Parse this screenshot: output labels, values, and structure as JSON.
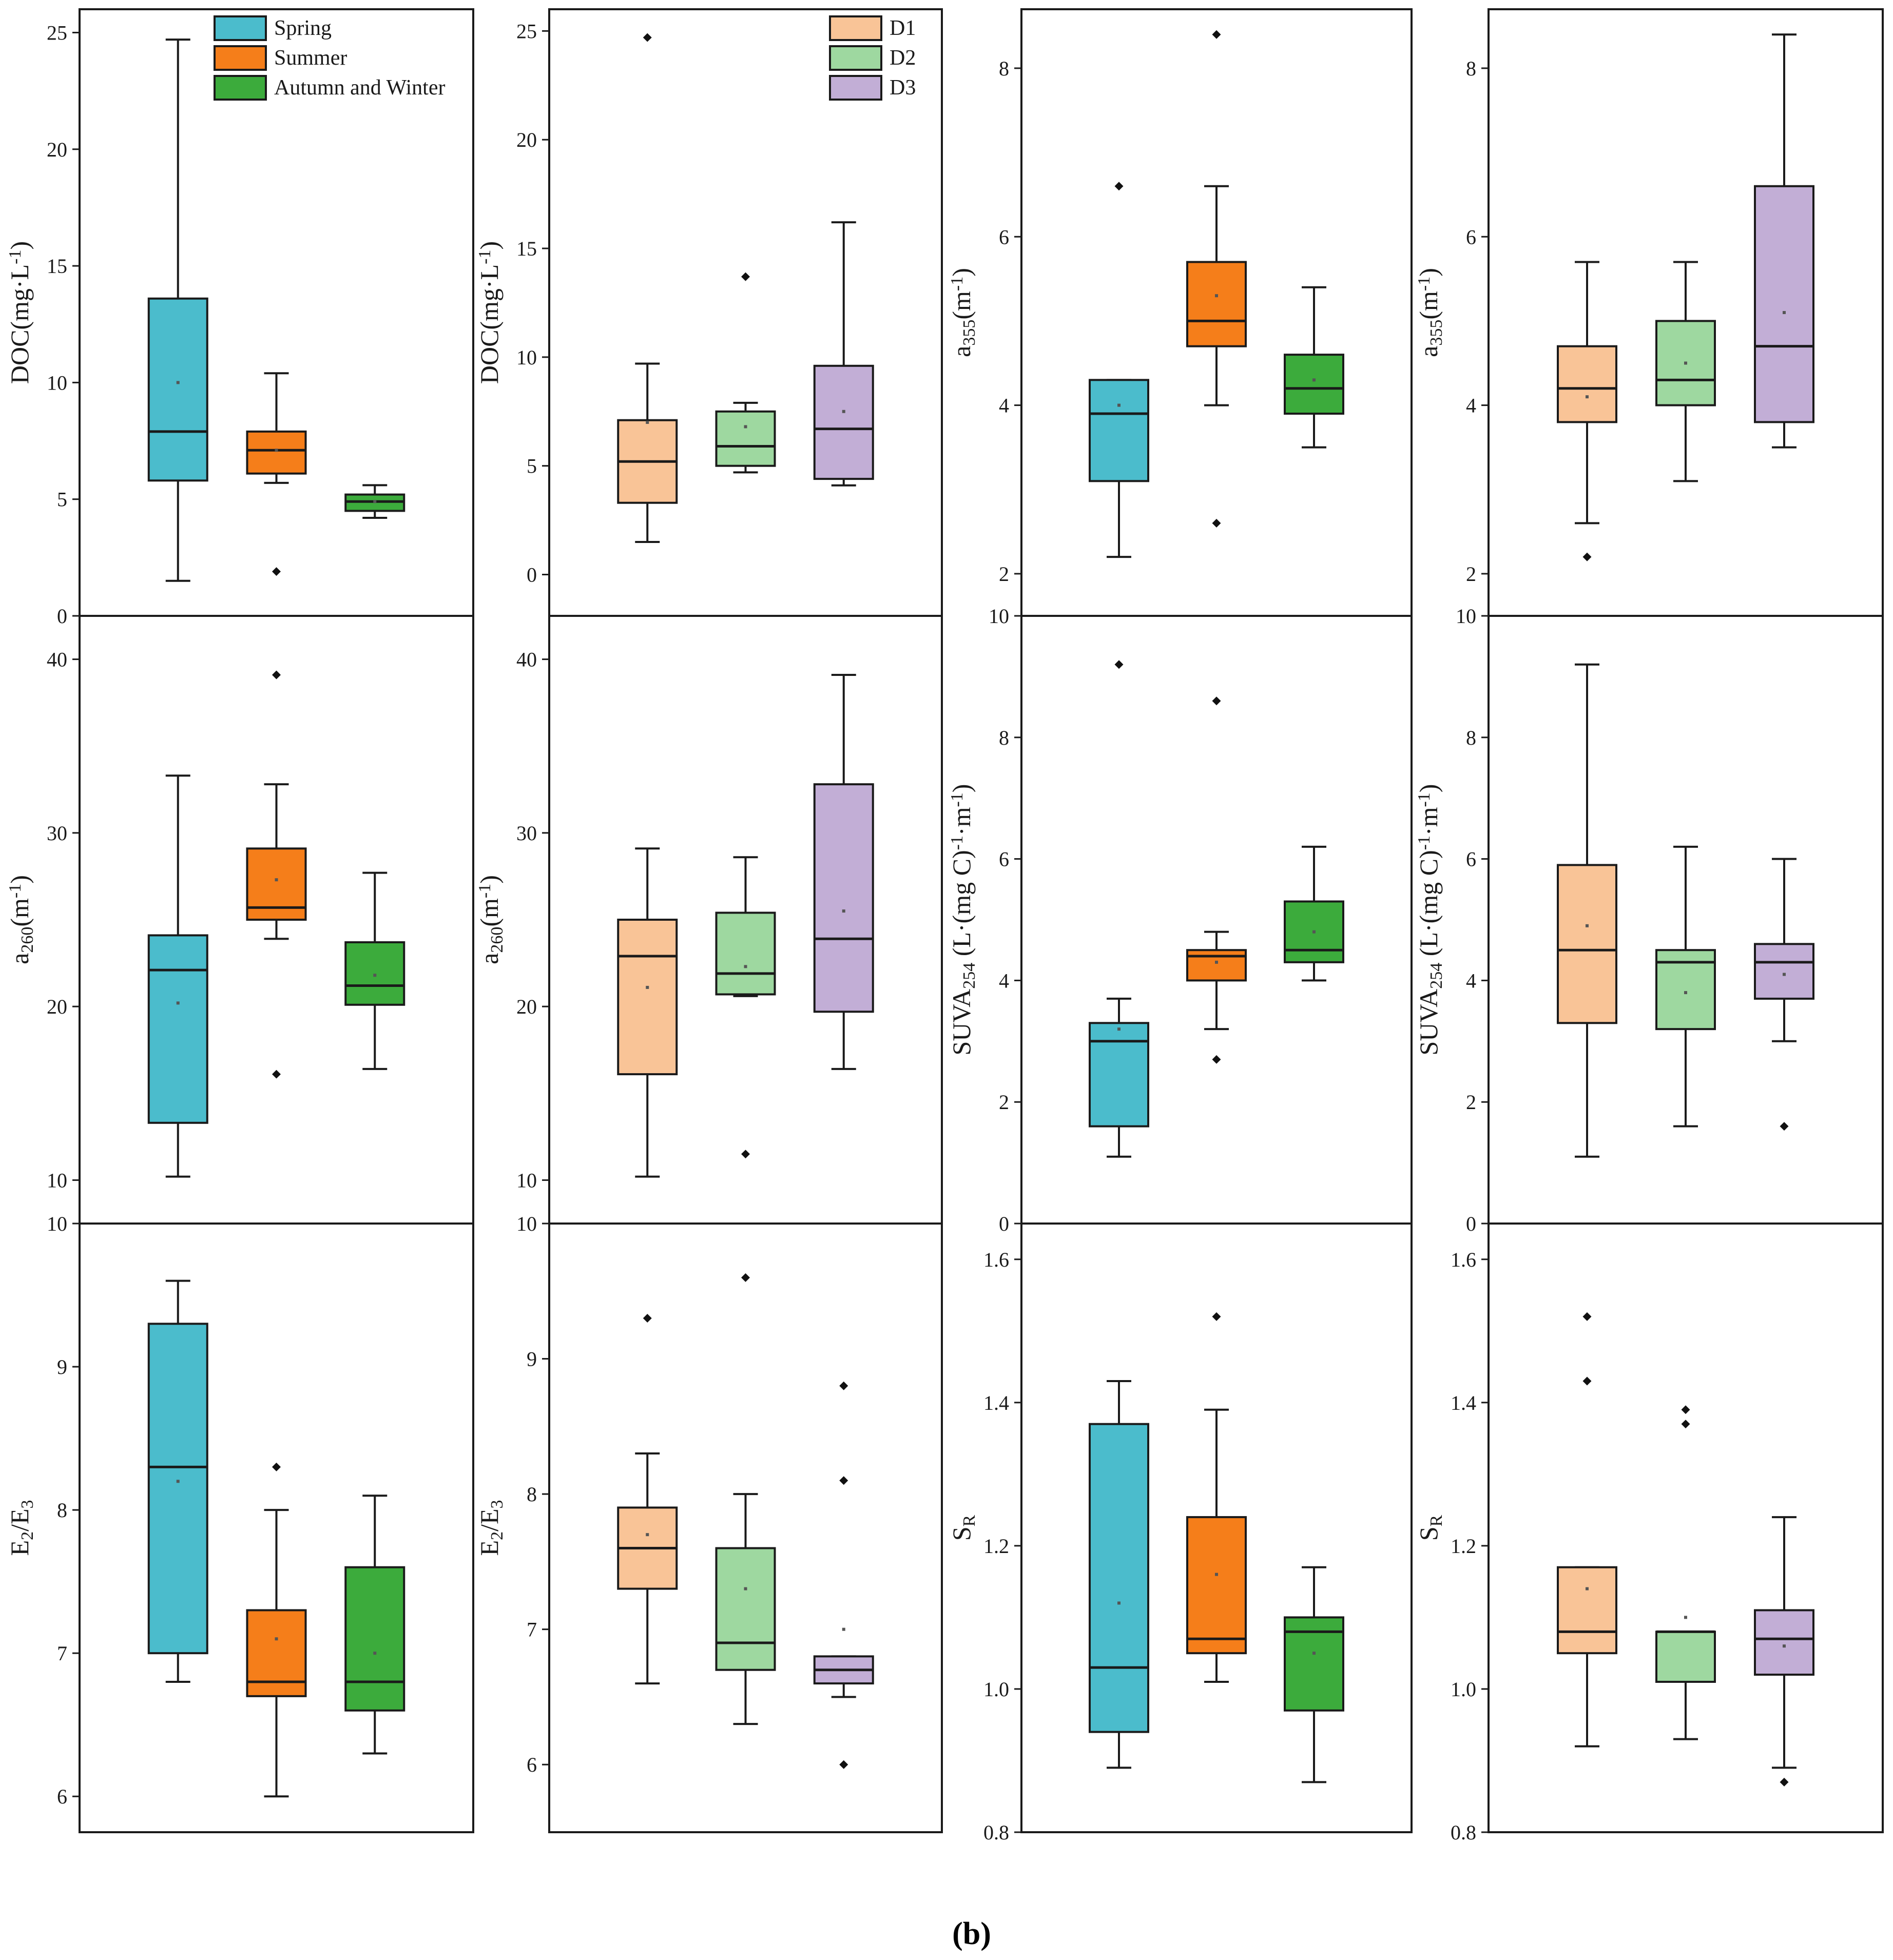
{
  "caption": "(b)",
  "colors": {
    "Spring": "#4bbccc",
    "Summer": "#f57e1a",
    "Autumn and Winter": "#3cab3c",
    "D1": "#f9c497",
    "D2": "#9ed8a0",
    "D3": "#c2aed6"
  },
  "chart_data": [
    {
      "type": "box",
      "panel": "DOC-season",
      "ylabel_base": "DOC(mg·L",
      "ylabel_sup": "-1",
      "ylabel_tail": ")",
      "ylim": [
        0,
        26
      ],
      "yticks": [
        "0",
        "5",
        "10",
        "15",
        "20",
        "25"
      ],
      "legend": [
        "Spring",
        "Summer",
        "Autumn and Winter"
      ],
      "boxes": [
        {
          "group": "Spring",
          "min": 1.5,
          "q1": 5.8,
          "median": 7.9,
          "q3": 13.6,
          "max": 24.7,
          "mean": 10.0,
          "outliers": []
        },
        {
          "group": "Summer",
          "min": 5.7,
          "q1": 6.1,
          "median": 7.1,
          "q3": 7.9,
          "max": 10.4,
          "mean": 7.1,
          "outliers": [
            1.9
          ]
        },
        {
          "group": "Autumn and Winter",
          "min": 4.2,
          "q1": 4.5,
          "median": 4.9,
          "q3": 5.2,
          "max": 5.6,
          "mean": 4.9,
          "outliers": []
        }
      ]
    },
    {
      "type": "box",
      "panel": "DOC-depth",
      "ylabel_base": "DOC(mg·L",
      "ylabel_sup": "-1",
      "ylabel_tail": ")",
      "ylim": [
        -1.9,
        26
      ],
      "yticks": [
        "0",
        "5",
        "10",
        "15",
        "20",
        "25"
      ],
      "legend": [
        "D1",
        "D2",
        "D3"
      ],
      "boxes": [
        {
          "group": "D1",
          "min": 1.5,
          "q1": 3.3,
          "median": 5.2,
          "q3": 7.1,
          "max": 9.7,
          "mean": 7.0,
          "outliers": [
            24.7
          ]
        },
        {
          "group": "D2",
          "min": 4.7,
          "q1": 5.0,
          "median": 5.9,
          "q3": 7.5,
          "max": 7.9,
          "mean": 6.8,
          "outliers": [
            13.7
          ]
        },
        {
          "group": "D3",
          "min": 4.1,
          "q1": 4.4,
          "median": 6.7,
          "q3": 9.6,
          "max": 16.2,
          "mean": 7.5,
          "outliers": []
        }
      ]
    },
    {
      "type": "box",
      "panel": "a355-season",
      "ylabel_base": "a",
      "ylabel_sub": "355",
      "ylabel_mid": "(m",
      "ylabel_sup": "-1",
      "ylabel_tail": ")",
      "ylim": [
        1.5,
        8.7
      ],
      "yticks": [
        "2",
        "4",
        "6",
        "8"
      ],
      "boxes": [
        {
          "group": "Spring",
          "min": 2.2,
          "q1": 3.1,
          "median": 3.9,
          "q3": 4.3,
          "max": 4.3,
          "mean": 4.0,
          "outliers": [
            6.6
          ]
        },
        {
          "group": "Summer",
          "min": 4.0,
          "q1": 4.7,
          "median": 5.0,
          "q3": 5.7,
          "max": 6.6,
          "mean": 5.3,
          "outliers": [
            8.4,
            2.6
          ]
        },
        {
          "group": "Autumn and Winter",
          "min": 3.5,
          "q1": 3.9,
          "median": 4.2,
          "q3": 4.6,
          "max": 5.4,
          "mean": 4.3,
          "outliers": []
        }
      ]
    },
    {
      "type": "box",
      "panel": "a355-depth",
      "ylabel_base": "a",
      "ylabel_sub": "355",
      "ylabel_mid": "(m",
      "ylabel_sup": "-1",
      "ylabel_tail": ")",
      "ylim": [
        1.5,
        8.7
      ],
      "yticks": [
        "2",
        "4",
        "6",
        "8"
      ],
      "boxes": [
        {
          "group": "D1",
          "min": 2.6,
          "q1": 3.8,
          "median": 4.2,
          "q3": 4.7,
          "max": 5.7,
          "mean": 4.1,
          "outliers": [
            2.2
          ]
        },
        {
          "group": "D2",
          "min": 3.1,
          "q1": 4.0,
          "median": 4.3,
          "q3": 5.0,
          "max": 5.7,
          "mean": 4.5,
          "outliers": []
        },
        {
          "group": "D3",
          "min": 3.5,
          "q1": 3.8,
          "median": 4.7,
          "q3": 6.6,
          "max": 8.4,
          "mean": 5.1,
          "outliers": []
        }
      ]
    },
    {
      "type": "box",
      "panel": "a260-season",
      "ylabel_base": "a",
      "ylabel_sub": "260",
      "ylabel_mid": "(m",
      "ylabel_sup": "-1",
      "ylabel_tail": ")",
      "ylim": [
        7.5,
        42.5
      ],
      "yticks": [
        "10",
        "20",
        "30",
        "40"
      ],
      "boxes": [
        {
          "group": "Spring",
          "min": 10.2,
          "q1": 13.3,
          "median": 22.1,
          "q3": 24.1,
          "max": 33.3,
          "mean": 20.2,
          "outliers": []
        },
        {
          "group": "Summer",
          "min": 23.9,
          "q1": 25.0,
          "median": 25.7,
          "q3": 29.1,
          "max": 32.8,
          "mean": 27.3,
          "outliers": [
            39.1,
            16.1
          ]
        },
        {
          "group": "Autumn and Winter",
          "min": 16.4,
          "q1": 20.1,
          "median": 21.2,
          "q3": 23.7,
          "max": 27.7,
          "mean": 21.8,
          "outliers": []
        }
      ]
    },
    {
      "type": "box",
      "panel": "a260-depth",
      "ylabel_base": "a",
      "ylabel_sub": "260",
      "ylabel_mid": "(m",
      "ylabel_sup": "-1",
      "ylabel_tail": ")",
      "ylim": [
        7.5,
        42.5
      ],
      "yticks": [
        "10",
        "20",
        "30",
        "40"
      ],
      "boxes": [
        {
          "group": "D1",
          "min": 10.2,
          "q1": 16.1,
          "median": 22.9,
          "q3": 25.0,
          "max": 29.1,
          "mean": 21.1,
          "outliers": []
        },
        {
          "group": "D2",
          "min": 20.6,
          "q1": 20.7,
          "median": 21.9,
          "q3": 25.4,
          "max": 28.6,
          "mean": 22.3,
          "outliers": [
            11.5
          ]
        },
        {
          "group": "D3",
          "min": 16.4,
          "q1": 19.7,
          "median": 23.9,
          "q3": 32.8,
          "max": 39.1,
          "mean": 25.5,
          "outliers": []
        }
      ]
    },
    {
      "type": "box",
      "panel": "SUVA-season",
      "ylabel_base": "SUVA",
      "ylabel_sub": "254",
      "ylabel_mid": " (L·(mg C)",
      "ylabel_sup": "-1",
      "ylabel_mid2": "·m",
      "ylabel_sup2": "-1",
      "ylabel_tail": ")",
      "ylim": [
        0,
        10
      ],
      "yticks": [
        "0",
        "2",
        "4",
        "6",
        "8",
        "10"
      ],
      "boxes": [
        {
          "group": "Spring",
          "min": 1.1,
          "q1": 1.6,
          "median": 3.0,
          "q3": 3.3,
          "max": 3.7,
          "mean": 3.2,
          "outliers": [
            9.2
          ]
        },
        {
          "group": "Summer",
          "min": 3.2,
          "q1": 4.0,
          "median": 4.4,
          "q3": 4.5,
          "max": 4.8,
          "mean": 4.3,
          "outliers": [
            8.6,
            2.7
          ]
        },
        {
          "group": "Autumn and Winter",
          "min": 4.0,
          "q1": 4.3,
          "median": 4.5,
          "q3": 5.3,
          "max": 6.2,
          "mean": 4.8,
          "outliers": []
        }
      ]
    },
    {
      "type": "box",
      "panel": "SUVA-depth",
      "ylabel_base": "SUVA",
      "ylabel_sub": "254",
      "ylabel_mid": " (L·(mg C)",
      "ylabel_sup": "-1",
      "ylabel_mid2": "·m",
      "ylabel_sup2": "-1",
      "ylabel_tail": ")",
      "ylim": [
        0,
        10
      ],
      "yticks": [
        "0",
        "2",
        "4",
        "6",
        "8",
        "10"
      ],
      "boxes": [
        {
          "group": "D1",
          "min": 1.1,
          "q1": 3.3,
          "median": 4.5,
          "q3": 5.9,
          "max": 9.2,
          "mean": 4.9,
          "outliers": []
        },
        {
          "group": "D2",
          "min": 1.6,
          "q1": 3.2,
          "median": 4.3,
          "q3": 4.5,
          "max": 6.2,
          "mean": 3.8,
          "outliers": []
        },
        {
          "group": "D3",
          "min": 3.0,
          "q1": 3.7,
          "median": 4.3,
          "q3": 4.6,
          "max": 6.0,
          "mean": 4.1,
          "outliers": [
            1.6
          ]
        }
      ]
    },
    {
      "type": "box",
      "panel": "E2E3-season",
      "ylabel_base": "E",
      "ylabel_sub": "2",
      "ylabel_mid": "/E",
      "ylabel_sub2": "3",
      "ylim": [
        5.75,
        10
      ],
      "yticks": [
        "6",
        "7",
        "8",
        "9",
        "10"
      ],
      "boxes": [
        {
          "group": "Spring",
          "min": 6.8,
          "q1": 7.0,
          "median": 8.3,
          "q3": 9.3,
          "max": 9.6,
          "mean": 8.2,
          "outliers": []
        },
        {
          "group": "Summer",
          "min": 6.0,
          "q1": 6.7,
          "median": 6.8,
          "q3": 7.3,
          "max": 8.0,
          "mean": 7.1,
          "outliers": [
            8.3
          ]
        },
        {
          "group": "Autumn and Winter",
          "min": 6.3,
          "q1": 6.6,
          "median": 6.8,
          "q3": 7.6,
          "max": 8.1,
          "mean": 7.0,
          "outliers": []
        }
      ]
    },
    {
      "type": "box",
      "panel": "E2E3-depth",
      "ylabel_base": "E",
      "ylabel_sub": "2",
      "ylabel_mid": "/E",
      "ylabel_sub2": "3",
      "ylim": [
        5.5,
        10
      ],
      "yticks": [
        "6",
        "7",
        "8",
        "9",
        "10"
      ],
      "boxes": [
        {
          "group": "D1",
          "min": 6.6,
          "q1": 7.3,
          "median": 7.6,
          "q3": 7.9,
          "max": 8.3,
          "mean": 7.7,
          "outliers": [
            9.3
          ]
        },
        {
          "group": "D2",
          "min": 6.3,
          "q1": 6.7,
          "median": 6.9,
          "q3": 7.6,
          "max": 8.0,
          "mean": 7.3,
          "outliers": [
            9.6
          ]
        },
        {
          "group": "D3",
          "min": 6.5,
          "q1": 6.6,
          "median": 6.7,
          "q3": 6.8,
          "max": 6.8,
          "mean": 7.0,
          "outliers": [
            8.8,
            8.1,
            6.0
          ]
        }
      ]
    },
    {
      "type": "box",
      "panel": "SR-season",
      "ylabel_base": "S",
      "ylabel_sub": "R",
      "ylim": [
        0.8,
        1.65
      ],
      "yticks": [
        "0.8",
        "1.0",
        "1.2",
        "1.4",
        "1.6"
      ],
      "boxes": [
        {
          "group": "Spring",
          "min": 0.89,
          "q1": 0.94,
          "median": 1.03,
          "q3": 1.37,
          "max": 1.43,
          "mean": 1.12,
          "outliers": []
        },
        {
          "group": "Summer",
          "min": 1.01,
          "q1": 1.05,
          "median": 1.07,
          "q3": 1.24,
          "max": 1.39,
          "mean": 1.16,
          "outliers": [
            1.52
          ]
        },
        {
          "group": "Autumn and Winter",
          "min": 0.87,
          "q1": 0.97,
          "median": 1.08,
          "q3": 1.1,
          "max": 1.17,
          "mean": 1.05,
          "outliers": []
        }
      ]
    },
    {
      "type": "box",
      "panel": "SR-depth",
      "ylabel_base": "S",
      "ylabel_sub": "R",
      "ylim": [
        0.8,
        1.65
      ],
      "yticks": [
        "0.8",
        "1.0",
        "1.2",
        "1.4",
        "1.6"
      ],
      "boxes": [
        {
          "group": "D1",
          "min": 0.92,
          "q1": 1.05,
          "median": 1.08,
          "q3": 1.17,
          "max": 1.17,
          "mean": 1.14,
          "outliers": [
            1.52,
            1.43
          ]
        },
        {
          "group": "D2",
          "min": 0.93,
          "q1": 1.01,
          "median": 1.08,
          "q3": 1.08,
          "max": 1.08,
          "mean": 1.1,
          "outliers": [
            1.39,
            1.37
          ]
        },
        {
          "group": "D3",
          "min": 0.89,
          "q1": 1.02,
          "median": 1.07,
          "q3": 1.11,
          "max": 1.24,
          "mean": 1.06,
          "outliers": [
            0.87
          ]
        }
      ]
    }
  ]
}
